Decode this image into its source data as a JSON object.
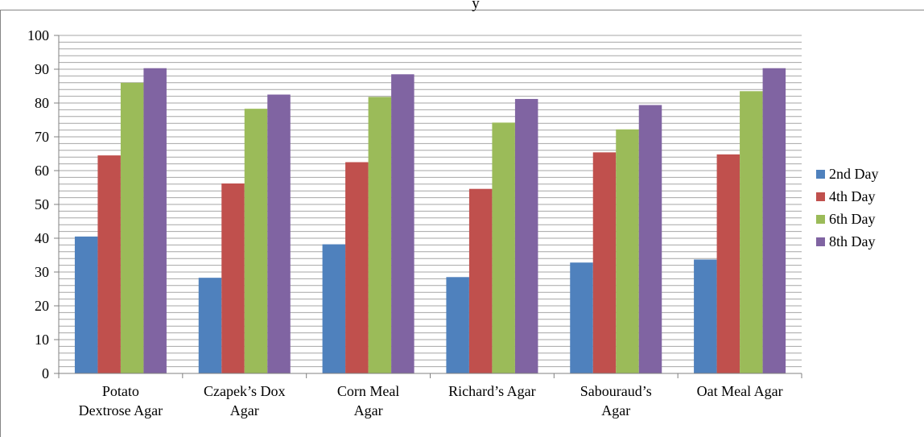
{
  "chart_data": {
    "type": "bar",
    "title_partial": "y",
    "categories": [
      [
        "Potato",
        "Dextrose Agar"
      ],
      [
        "Czapek’s Dox",
        "Agar"
      ],
      [
        "Corn Meal",
        "Agar"
      ],
      [
        "Richard’s Agar"
      ],
      [
        "Sabouraud’s",
        "Agar"
      ],
      [
        "Oat Meal Agar"
      ]
    ],
    "series": [
      {
        "name": "2nd Day",
        "color": "#4F81BD",
        "values": [
          40.5,
          28.3,
          38.2,
          28.5,
          32.8,
          33.7
        ]
      },
      {
        "name": "4th Day",
        "color": "#C0504D",
        "values": [
          64.5,
          56.2,
          62.5,
          54.6,
          65.4,
          64.8
        ]
      },
      {
        "name": "6th Day",
        "color": "#9BBB59",
        "values": [
          86.0,
          78.3,
          81.8,
          74.2,
          72.2,
          83.5
        ]
      },
      {
        "name": "8th Day",
        "color": "#8064A2",
        "values": [
          90.3,
          82.5,
          88.5,
          81.2,
          79.4,
          90.3
        ]
      }
    ],
    "ylim": [
      0,
      100
    ],
    "yticks": [
      0,
      10,
      20,
      30,
      40,
      50,
      60,
      70,
      80,
      90,
      100
    ],
    "minor_grid_step": 2,
    "grid": true,
    "legend_position": "right",
    "xlabel": "",
    "ylabel": ""
  }
}
